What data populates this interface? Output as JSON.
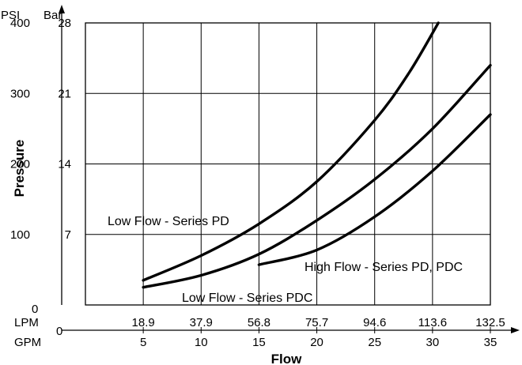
{
  "chart_data": {
    "type": "line",
    "title": "",
    "xlabel": "Flow",
    "ylabel": "Pressure",
    "x_unit_primary": "GPM",
    "x_unit_secondary": "LPM",
    "y_unit_primary": "PSI",
    "y_unit_secondary": "Bar",
    "xlim": [
      0,
      35
    ],
    "ylim": [
      0,
      400
    ],
    "x_origin_label": "0",
    "y_origin_label": "0",
    "x_ticks_gpm": [
      "5",
      "10",
      "15",
      "20",
      "25",
      "30",
      "35"
    ],
    "x_ticks_lpm": [
      "18.9",
      "37.9",
      "56.8",
      "75.7",
      "94.6",
      "113.6",
      "132.5"
    ],
    "y_ticks_psi": [
      "100",
      "200",
      "300",
      "400"
    ],
    "y_ticks_bar": [
      "7",
      "14",
      "21",
      "28"
    ],
    "grid": true,
    "series": [
      {
        "name": "Low Flow - Series PD",
        "x": [
          5,
          10,
          15,
          20,
          25,
          28,
          30.5
        ],
        "y": [
          35,
          70,
          115,
          175,
          262,
          330,
          400
        ]
      },
      {
        "name": "Low Flow - Series PDC",
        "x": [
          5,
          10,
          15,
          20,
          25,
          30,
          35
        ],
        "y": [
          25,
          42,
          72,
          120,
          178,
          250,
          340
        ]
      },
      {
        "name": "High Flow - Series PD, PDC",
        "x": [
          15,
          20,
          25,
          30,
          35
        ],
        "y": [
          57,
          78,
          125,
          190,
          270
        ]
      }
    ]
  }
}
